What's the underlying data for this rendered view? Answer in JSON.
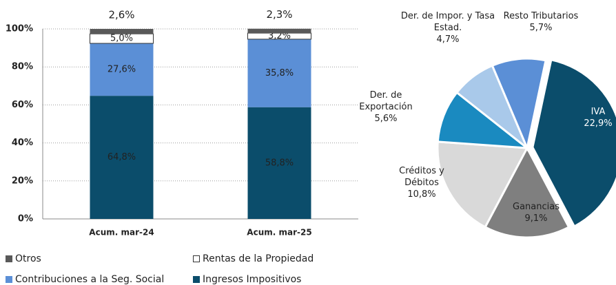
{
  "chart_data": [
    {
      "type": "stacked_bar",
      "categories": [
        "Acum. mar-24",
        "Acum. mar-25"
      ],
      "ylim": [
        0,
        100
      ],
      "yticks": [
        {
          "value": 0,
          "label": "0%"
        },
        {
          "value": 20,
          "label": "20%"
        },
        {
          "value": 40,
          "label": "40%"
        },
        {
          "value": 60,
          "label": "60%"
        },
        {
          "value": 80,
          "label": "80%"
        },
        {
          "value": 100,
          "label": "100%"
        }
      ],
      "grid": true,
      "series": [
        {
          "name": "Ingresos Impositivos",
          "color": "#0b4d6b",
          "values": [
            64.8,
            58.8
          ],
          "value_labels": [
            "64,8%",
            "58,8%"
          ]
        },
        {
          "name": "Contribuciones a la Seg. Social",
          "color": "#5b8fd6",
          "values": [
            27.6,
            35.8
          ],
          "value_labels": [
            "27,6%",
            "35,8%"
          ]
        },
        {
          "name": "Rentas de la Propiedad",
          "color": "#ffffff",
          "values": [
            5.0,
            3.2
          ],
          "value_labels": [
            "5,0%",
            "3,2%"
          ]
        },
        {
          "name": "Otros",
          "color": "#595959",
          "values": [
            2.6,
            2.3
          ],
          "value_labels": [
            "2,6%",
            "2,3%"
          ]
        }
      ]
    },
    {
      "type": "pie",
      "categories": [
        "IVA",
        "Ganancias",
        "Créditos y Débitos",
        "Der. de Exportación",
        "Der. de Impor. y Tasa Estad.",
        "Resto Tributarios"
      ],
      "values": [
        22.9,
        9.1,
        10.8,
        5.6,
        4.7,
        5.7
      ],
      "value_labels": [
        "22,9%",
        "9,1%",
        "10,8%",
        "5,6%",
        "4,7%",
        "5,7%"
      ],
      "colors": [
        "#0b4d6b",
        "#7f7f7f",
        "#d9d9d9",
        "#1a8ac0",
        "#a9c9ea",
        "#5b8fd6"
      ]
    }
  ]
}
